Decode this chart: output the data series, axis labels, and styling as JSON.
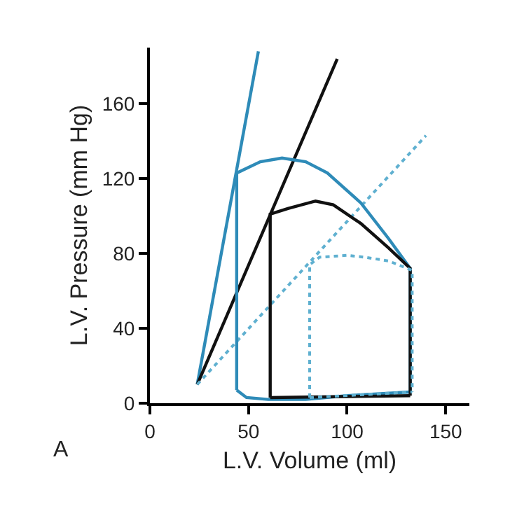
{
  "chart_data": {
    "type": "line",
    "xlabel": "L.V. Volume (ml)",
    "ylabel": "L.V. Pressure (mm Hg)",
    "annotations": [
      "A"
    ],
    "xlim": [
      0,
      162
    ],
    "ylim": [
      0,
      190
    ],
    "xticks": [
      0,
      50,
      100,
      150
    ],
    "yticks": [
      0,
      40,
      80,
      120,
      160
    ],
    "grid": false,
    "marker": "none",
    "series": [
      {
        "color": "#2e8bb8",
        "line_style": "solid",
        "x": [
          24,
          55
        ],
        "values": [
          10,
          188
        ]
      },
      {
        "color": "#111111",
        "line_style": "solid",
        "x": [
          24,
          95
        ],
        "values": [
          10,
          184
        ]
      },
      {
        "color": "#5fb0d0",
        "line_style": "dotted",
        "x": [
          24,
          140
        ],
        "values": [
          10,
          143
        ]
      },
      {
        "color": "#2e8bb8",
        "line_style": "solid",
        "x": [
          44,
          44,
          56,
          67,
          79,
          90,
          107,
          121,
          132,
          132
        ],
        "values": [
          7,
          123,
          129,
          131,
          129,
          123,
          107,
          88,
          72,
          6
        ]
      },
      {
        "color": "#2e8bb8",
        "line_style": "solid",
        "x": [
          44,
          49,
          60,
          79,
          100,
          132
        ],
        "values": [
          7,
          3,
          2,
          2,
          4,
          6
        ]
      },
      {
        "color": "#111111",
        "line_style": "solid",
        "x": [
          61,
          61,
          70,
          84,
          93,
          107,
          121,
          132,
          132
        ],
        "values": [
          3,
          101,
          104,
          108,
          106,
          96,
          83,
          72,
          4
        ]
      },
      {
        "color": "#111111",
        "line_style": "solid",
        "x": [
          61,
          132
        ],
        "values": [
          3,
          4
        ]
      },
      {
        "color": "#5fb0d0",
        "line_style": "dotted",
        "x": [
          81,
          81,
          86,
          100,
          109,
          121,
          133,
          133
        ],
        "values": [
          3,
          74,
          78,
          79,
          78,
          76,
          71,
          6
        ]
      },
      {
        "color": "#5fb0d0",
        "line_style": "dotted",
        "x": [
          81,
          133
        ],
        "values": [
          3,
          6
        ]
      }
    ]
  }
}
